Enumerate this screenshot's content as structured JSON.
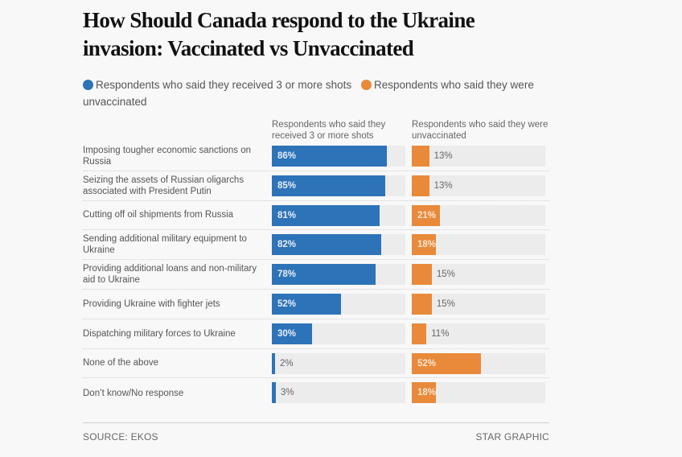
{
  "colors": {
    "vaccinated": "#2d73b8",
    "unvaccinated": "#e88a3a",
    "track": "#ececec"
  },
  "legend": {
    "vaccinated": "Respondents who said they received 3 or more shots",
    "unvaccinated": "Respondents who said they were unvaccinated"
  },
  "column_headers": {
    "vaccinated": "Respondents who said they received 3 or more shots",
    "unvaccinated": "Respondents who said they were unvaccinated"
  },
  "footer": {
    "source": "SOURCE: EKOS",
    "credit": "STAR GRAPHIC"
  },
  "chart_data": {
    "type": "bar",
    "orientation": "horizontal",
    "title": "How Should Canada respond to the Ukraine invasion: Vaccinated vs Unvaccinated",
    "xlabel": "",
    "ylabel": "",
    "xlim": [
      0,
      100
    ],
    "unit": "%",
    "grid": false,
    "legend_position": "top",
    "categories": [
      "Imposing tougher economic sanctions on Russia",
      "Seizing the assets of Russian oligarchs associated with President Putin",
      "Cutting off oil shipments from Russia",
      "Sending additional military equipment to Ukraine",
      "Providing additional loans and non-military aid to Ukraine",
      "Providing Ukraine with fighter jets",
      "Dispatching military forces to Ukraine",
      "None of the above",
      "Don’t know/No response"
    ],
    "series": [
      {
        "name": "Respondents who said they received 3 or more shots",
        "values": [
          86,
          85,
          81,
          82,
          78,
          52,
          30,
          2,
          3
        ],
        "labels": [
          "86%",
          "85%",
          "81%",
          "82%",
          "78%",
          "52%",
          "30%",
          "2%",
          "3%"
        ]
      },
      {
        "name": "Respondents who said they were unvaccinated",
        "values": [
          13,
          13,
          21,
          18,
          15,
          15,
          11,
          52,
          18
        ],
        "labels": [
          "13%",
          "13%",
          "21%",
          "18%",
          "15%",
          "15%",
          "11%",
          "52%",
          "18%"
        ]
      }
    ],
    "source": "SOURCE: EKOS",
    "credit": "STAR GRAPHIC"
  }
}
